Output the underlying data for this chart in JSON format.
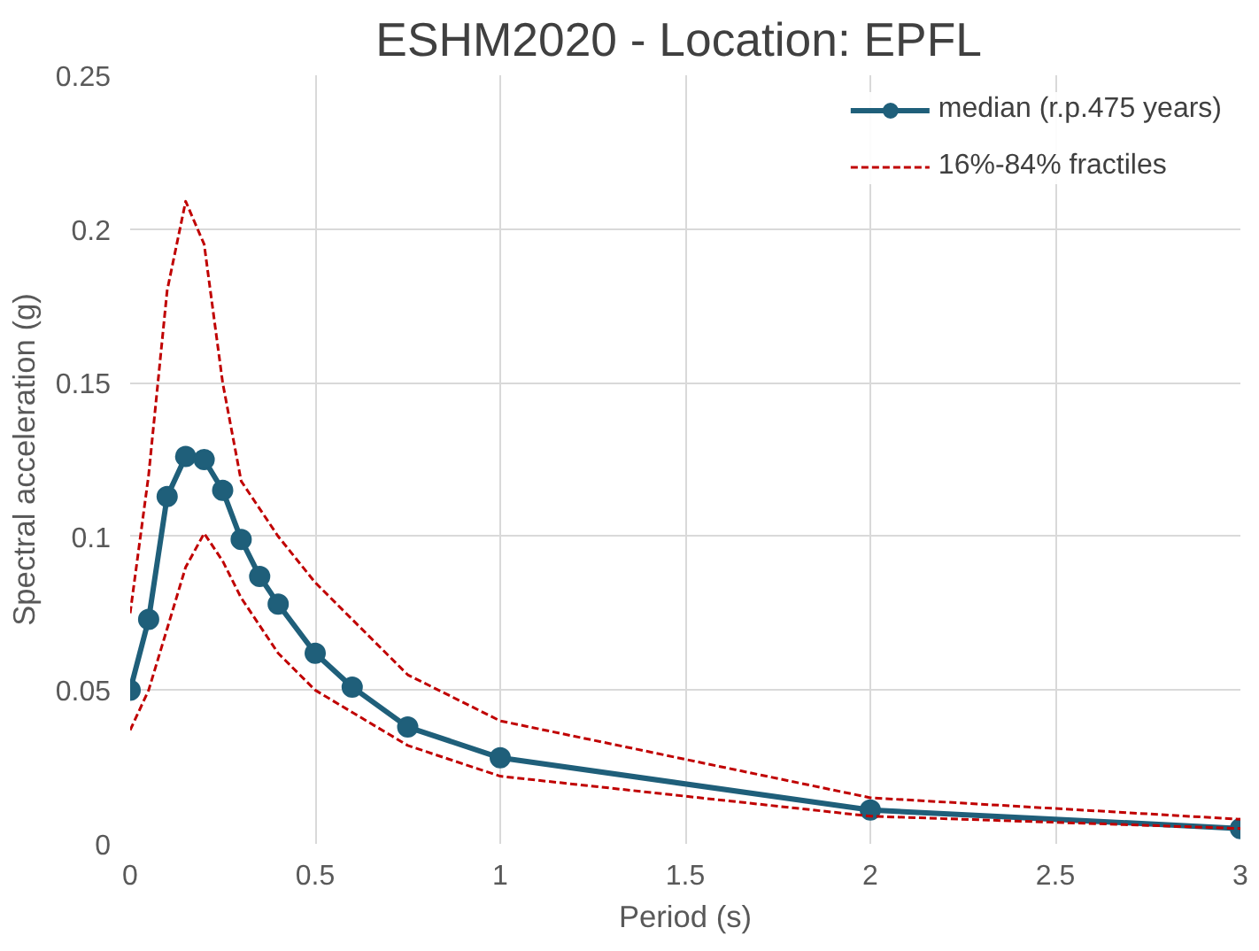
{
  "chart_data": {
    "type": "line",
    "title": "ESHM2020 -  Location: EPFL",
    "xlabel": "Period (s)",
    "ylabel": "Spectral acceleration (g)",
    "xlim": [
      0,
      3
    ],
    "xticks": [
      0,
      0.5,
      1,
      1.5,
      2,
      2.5,
      3
    ],
    "ylim": [
      0,
      0.25
    ],
    "yticks": [
      0,
      0.05,
      0.1,
      0.15,
      0.2,
      0.25
    ],
    "grid": true,
    "legend": "top right",
    "series": [
      {
        "name": "median (r.p.475 years)",
        "color": "#1f5f7a",
        "marker": "circle",
        "line_style": "solid",
        "x": [
          0,
          0.05,
          0.1,
          0.15,
          0.2,
          0.25,
          0.3,
          0.35,
          0.4,
          0.5,
          0.6,
          0.75,
          1,
          2,
          3
        ],
        "values": [
          0.05,
          0.073,
          0.113,
          0.126,
          0.125,
          0.115,
          0.099,
          0.087,
          0.078,
          0.062,
          0.051,
          0.038,
          0.028,
          0.011,
          0.005
        ]
      },
      {
        "name": "16%-84% fractiles",
        "color": "#c00000",
        "marker": "none",
        "line_style": "dashed",
        "x": [
          0,
          0.05,
          0.1,
          0.15,
          0.2,
          0.25,
          0.3,
          0.4,
          0.5,
          0.75,
          1,
          2,
          3
        ],
        "values": [
          0.075,
          0.12,
          0.18,
          0.209,
          0.195,
          0.15,
          0.118,
          0.1,
          0.085,
          0.055,
          0.04,
          0.015,
          0.008
        ]
      },
      {
        "color": "#c00000",
        "marker": "none",
        "line_style": "dashed",
        "x": [
          0,
          0.05,
          0.1,
          0.15,
          0.2,
          0.25,
          0.3,
          0.4,
          0.5,
          0.75,
          1,
          2,
          3
        ],
        "values": [
          0.037,
          0.05,
          0.07,
          0.09,
          0.101,
          0.092,
          0.08,
          0.062,
          0.05,
          0.032,
          0.022,
          0.009,
          0.005
        ]
      }
    ]
  }
}
